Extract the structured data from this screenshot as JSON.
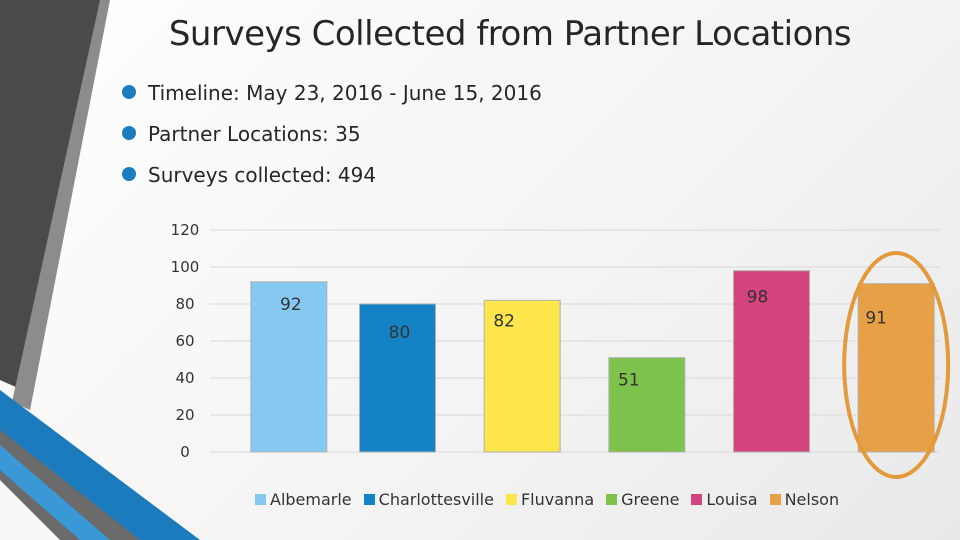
{
  "slide": {
    "title": "Surveys Collected from Partner Locations",
    "bullets": [
      "Timeline: May 23, 2016 - June 15, 2016",
      "Partner Locations: 35",
      "Surveys collected: 494"
    ]
  },
  "colors": {
    "bullet": "#1c7cc0",
    "highlight_ellipse": "#e39a3c"
  },
  "chart_data": {
    "type": "bar",
    "categories": [
      "Albemarle",
      "Charlottesville",
      "Fluvanna",
      "Greene",
      "Louisa",
      "Nelson"
    ],
    "values": [
      92,
      80,
      82,
      51,
      98,
      91
    ],
    "value_labels": [
      "92",
      "80",
      "82",
      "51",
      "98",
      "91"
    ],
    "colors": [
      "#85c8f2",
      "#1482c4",
      "#fde64b",
      "#7dc24a",
      "#d6447f",
      "#e8a046"
    ],
    "yticks": [
      "0",
      "20",
      "40",
      "60",
      "80",
      "100",
      "120"
    ],
    "ylim": [
      0,
      120
    ],
    "grid": true,
    "legend": "bottom",
    "highlighted_category": "Nelson"
  }
}
